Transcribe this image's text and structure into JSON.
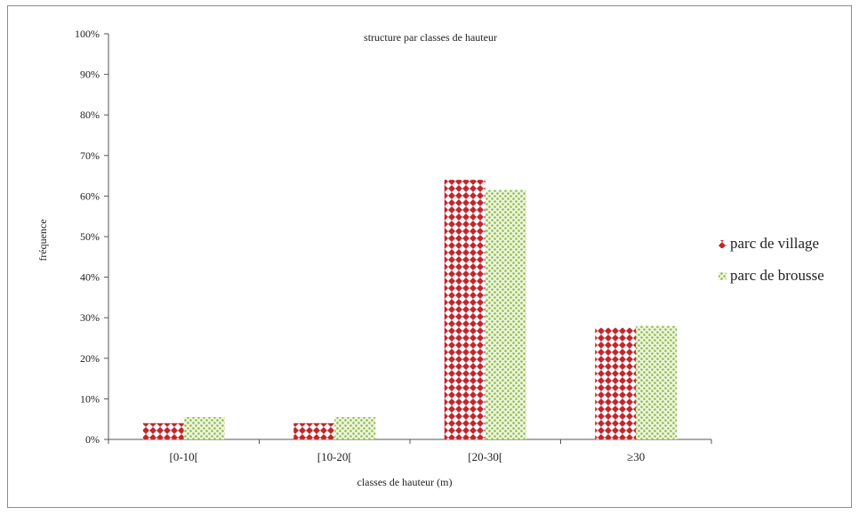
{
  "chart_data": {
    "type": "bar",
    "title": "structure par classes de hauteur",
    "xlabel": "classes de hauteur (m)",
    "ylabel": "fréquence",
    "categories": [
      "[0-10[",
      "[10-20[",
      "[20-30[",
      "≥30"
    ],
    "series": [
      {
        "name": "parc de village",
        "values": [
          4,
          4,
          64,
          27.5
        ],
        "color": "#c0272d",
        "pattern": "diamond-dots"
      },
      {
        "name": "parc de brousse",
        "values": [
          5.5,
          5.5,
          61.5,
          28
        ],
        "color": "#9cc46b",
        "pattern": "speckle"
      }
    ],
    "ylim": [
      0,
      100
    ],
    "yticks": [
      "0%",
      "10%",
      "20%",
      "30%",
      "40%",
      "50%",
      "60%",
      "70%",
      "80%",
      "90%",
      "100%"
    ],
    "grid": false,
    "legend_position": "right"
  }
}
